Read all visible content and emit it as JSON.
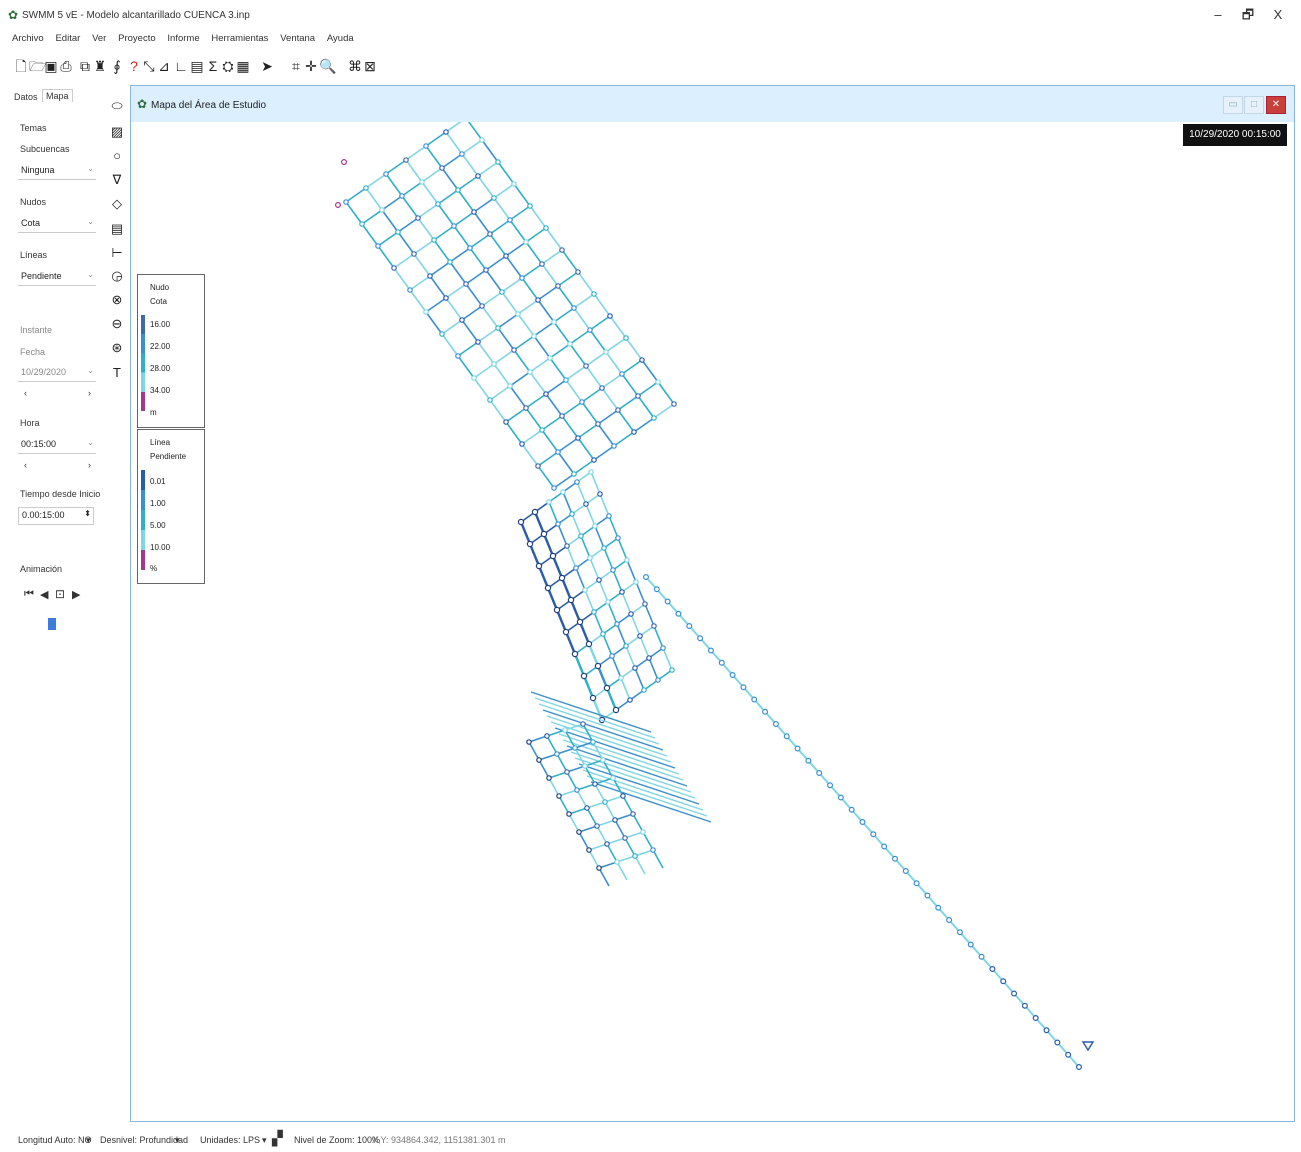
{
  "window": {
    "title": "SWMM 5 vE - Modelo alcantarillado CUENCA 3.inp",
    "minimize_label": "–",
    "maximize_label": "🗗",
    "close_label": "X"
  },
  "menu": [
    "Archivo",
    "Editar",
    "Ver",
    "Proyecto",
    "Informe",
    "Herramientas",
    "Ventana",
    "Ayuda"
  ],
  "toolbar": {
    "icons": [
      "new-file-icon",
      "open-file-icon",
      "save-icon",
      "print-icon",
      "copy-icon",
      "find-icon",
      "query-icon",
      "help-icon",
      "profile-plot-icon",
      "time-series-icon",
      "scatter-plot-icon",
      "table-icon",
      "statistics-icon",
      "run-icon",
      "report-icon",
      "select-object-icon",
      "select-vertex-icon",
      "pan-icon",
      "zoom-in-icon",
      "full-extent-icon",
      "measure-icon"
    ]
  },
  "left_panel": {
    "tabs": [
      "Datos",
      "Mapa"
    ],
    "themes_label": "Temas",
    "subcatchments_label": "Subcuencas",
    "subcatchments_value": "Ninguna",
    "nodes_label": "Nudos",
    "nodes_value": "Cota",
    "links_label": "Líneas",
    "links_value": "Pendiente",
    "instant_label": "Instante",
    "date_label": "Fecha",
    "date_value": "10/29/2020",
    "time_label": "Hora",
    "time_value": "00:15:00",
    "elapsed_label": "Tiempo desde Inicio",
    "elapsed_value": "0.00:15:00",
    "animation_label": "Animación",
    "scroll_left": "‹",
    "scroll_right": "›"
  },
  "object_toolbar_icons": [
    "rain-gage-icon",
    "subcatchment-icon",
    "junction-icon",
    "outfall-icon",
    "divider-icon",
    "storage-icon",
    "conduit-icon",
    "pump-icon",
    "orifice-icon",
    "weir-icon",
    "outlet-icon",
    "label-icon"
  ],
  "map_window": {
    "title": "Mapa del Área de Estudio",
    "timestamp": "10/29/2020 00:15:00",
    "node_legend": {
      "title": "Nudo",
      "variable": "Cota",
      "values": [
        "16.00",
        "22.00",
        "28.00",
        "34.00"
      ],
      "unit": "m",
      "colors": [
        "#4169aa",
        "#3b8fd1",
        "#2fb0c8",
        "#7fd6e4",
        "#a23a8b"
      ]
    },
    "link_legend": {
      "title": "Línea",
      "variable": "Pendiente",
      "values": [
        "0.01",
        "1.00",
        "5.00",
        "10.00"
      ],
      "unit": "%",
      "colors": [
        "#2a5caa",
        "#3b8fd1",
        "#2fb0c8",
        "#7fd6e4",
        "#a23a8b"
      ]
    }
  },
  "status_bar": {
    "auto_length": "Longitud Auto: NO",
    "offsets": "Desnivel: Profundidad",
    "units": "Unidades: LPS",
    "zoom": "Nivel de Zoom: 100%",
    "xy": "X,Y: 934864.342, 1151381.301 m"
  }
}
